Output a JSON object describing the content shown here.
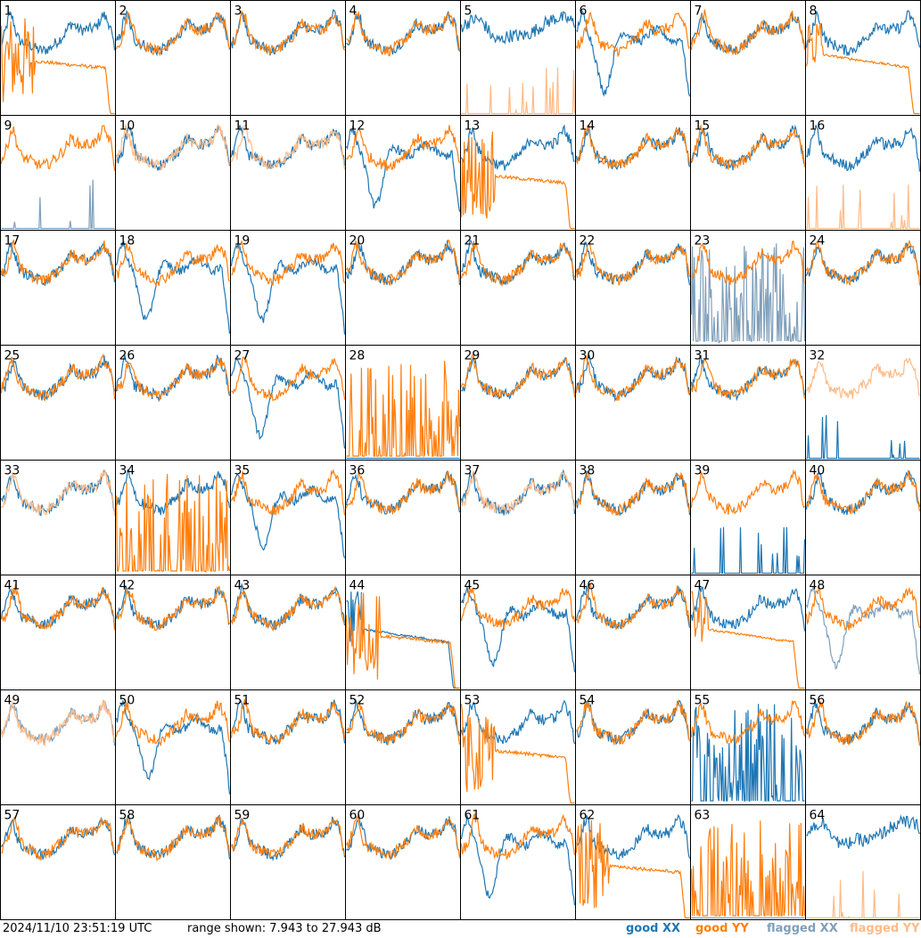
{
  "colors": {
    "good_xx": "#1f77b4",
    "good_yy": "#ff7f0e",
    "flagged_xx": "#7f9fba",
    "flagged_yy": "#ffbb88",
    "border": "#000000",
    "label": "#000000"
  },
  "footer": {
    "timestamp": "2024/11/10 23:51:19 UTC",
    "range": "range shown: 7.943 to 27.943 dB"
  },
  "legend": {
    "good_xx": "good XX",
    "good_yy": "good YY",
    "flagged_xx": "flagged XX",
    "flagged_yy": "flagged YY"
  },
  "chart_data": {
    "type": "line",
    "layout": "8x8 small multiples",
    "ylim_db": [
      7.943,
      27.943
    ],
    "panels": [
      {
        "label": "1",
        "xx": "good",
        "yy": "good",
        "xx_shape": "normal",
        "yy_shape": "spiky_low"
      },
      {
        "label": "2",
        "xx": "good",
        "yy": "good",
        "xx_shape": "normal",
        "yy_shape": "normal"
      },
      {
        "label": "3",
        "xx": "good",
        "yy": "good",
        "xx_shape": "normal",
        "yy_shape": "normal"
      },
      {
        "label": "4",
        "xx": "good",
        "yy": "good",
        "xx_shape": "normal",
        "yy_shape": "normal"
      },
      {
        "label": "5",
        "xx": "good",
        "yy": "flagged",
        "xx_shape": "high_noisy",
        "yy_shape": "sparse_spikes"
      },
      {
        "label": "6",
        "xx": "good",
        "yy": "good",
        "xx_shape": "dip",
        "yy_shape": "normal"
      },
      {
        "label": "7",
        "xx": "good",
        "yy": "good",
        "xx_shape": "normal",
        "yy_shape": "normal"
      },
      {
        "label": "8",
        "xx": "good",
        "yy": "good",
        "xx_shape": "normal",
        "yy_shape": "decay"
      },
      {
        "label": "9",
        "xx": "flagged",
        "yy": "good",
        "xx_shape": "sparse_spikes",
        "yy_shape": "normal"
      },
      {
        "label": "10",
        "xx": "good",
        "yy": "flagged",
        "xx_shape": "normal",
        "yy_shape": "normal"
      },
      {
        "label": "11",
        "xx": "good",
        "yy": "flagged",
        "xx_shape": "normal",
        "yy_shape": "normal"
      },
      {
        "label": "12",
        "xx": "good",
        "yy": "good",
        "xx_shape": "dip",
        "yy_shape": "normal"
      },
      {
        "label": "13",
        "xx": "good",
        "yy": "good",
        "xx_shape": "normal",
        "yy_shape": "spiky_low"
      },
      {
        "label": "14",
        "xx": "good",
        "yy": "good",
        "xx_shape": "normal",
        "yy_shape": "normal"
      },
      {
        "label": "15",
        "xx": "good",
        "yy": "good",
        "xx_shape": "normal",
        "yy_shape": "normal"
      },
      {
        "label": "16",
        "xx": "good",
        "yy": "flagged",
        "xx_shape": "normal",
        "yy_shape": "sparse_spikes"
      },
      {
        "label": "17",
        "xx": "good",
        "yy": "good",
        "xx_shape": "normal",
        "yy_shape": "normal"
      },
      {
        "label": "18",
        "xx": "good",
        "yy": "good",
        "xx_shape": "dip",
        "yy_shape": "normal"
      },
      {
        "label": "19",
        "xx": "good",
        "yy": "good",
        "xx_shape": "dip",
        "yy_shape": "normal"
      },
      {
        "label": "20",
        "xx": "good",
        "yy": "good",
        "xx_shape": "normal",
        "yy_shape": "normal"
      },
      {
        "label": "21",
        "xx": "good",
        "yy": "good",
        "xx_shape": "normal",
        "yy_shape": "normal"
      },
      {
        "label": "22",
        "xx": "good",
        "yy": "good",
        "xx_shape": "normal",
        "yy_shape": "normal"
      },
      {
        "label": "23",
        "xx": "flagged",
        "yy": "good",
        "xx_shape": "dense_spikes",
        "yy_shape": "normal"
      },
      {
        "label": "24",
        "xx": "good",
        "yy": "good",
        "xx_shape": "normal",
        "yy_shape": "normal"
      },
      {
        "label": "25",
        "xx": "good",
        "yy": "good",
        "xx_shape": "normal",
        "yy_shape": "normal"
      },
      {
        "label": "26",
        "xx": "good",
        "yy": "good",
        "xx_shape": "normal",
        "yy_shape": "normal"
      },
      {
        "label": "27",
        "xx": "good",
        "yy": "good",
        "xx_shape": "dip",
        "yy_shape": "normal"
      },
      {
        "label": "28",
        "xx": "good",
        "yy": "good",
        "xx_shape": "flat_bottom",
        "yy_shape": "dense_spikes"
      },
      {
        "label": "29",
        "xx": "good",
        "yy": "good",
        "xx_shape": "normal",
        "yy_shape": "normal"
      },
      {
        "label": "30",
        "xx": "good",
        "yy": "good",
        "xx_shape": "normal",
        "yy_shape": "normal"
      },
      {
        "label": "31",
        "xx": "good",
        "yy": "good",
        "xx_shape": "normal",
        "yy_shape": "normal"
      },
      {
        "label": "32",
        "xx": "good",
        "yy": "flagged",
        "xx_shape": "sparse_spikes",
        "yy_shape": "normal"
      },
      {
        "label": "33",
        "xx": "good",
        "yy": "flagged",
        "xx_shape": "normal",
        "yy_shape": "normal"
      },
      {
        "label": "34",
        "xx": "good",
        "yy": "good",
        "xx_shape": "normal",
        "yy_shape": "dense_spikes"
      },
      {
        "label": "35",
        "xx": "good",
        "yy": "good",
        "xx_shape": "dip",
        "yy_shape": "normal"
      },
      {
        "label": "36",
        "xx": "good",
        "yy": "good",
        "xx_shape": "normal",
        "yy_shape": "normal"
      },
      {
        "label": "37",
        "xx": "good",
        "yy": "flagged",
        "xx_shape": "normal",
        "yy_shape": "normal"
      },
      {
        "label": "38",
        "xx": "good",
        "yy": "good",
        "xx_shape": "normal",
        "yy_shape": "normal"
      },
      {
        "label": "39",
        "xx": "good",
        "yy": "good",
        "xx_shape": "sparse_spikes",
        "yy_shape": "normal"
      },
      {
        "label": "40",
        "xx": "good",
        "yy": "good",
        "xx_shape": "normal",
        "yy_shape": "normal"
      },
      {
        "label": "41",
        "xx": "good",
        "yy": "good",
        "xx_shape": "normal",
        "yy_shape": "normal"
      },
      {
        "label": "42",
        "xx": "good",
        "yy": "good",
        "xx_shape": "normal",
        "yy_shape": "normal"
      },
      {
        "label": "43",
        "xx": "good",
        "yy": "good",
        "xx_shape": "normal",
        "yy_shape": "normal"
      },
      {
        "label": "44",
        "xx": "good",
        "yy": "good",
        "xx_shape": "decay",
        "yy_shape": "spiky_low"
      },
      {
        "label": "45",
        "xx": "good",
        "yy": "good",
        "xx_shape": "dip",
        "yy_shape": "normal"
      },
      {
        "label": "46",
        "xx": "good",
        "yy": "good",
        "xx_shape": "normal",
        "yy_shape": "normal"
      },
      {
        "label": "47",
        "xx": "good",
        "yy": "good",
        "xx_shape": "normal",
        "yy_shape": "decay"
      },
      {
        "label": "48",
        "xx": "flagged",
        "yy": "good",
        "xx_shape": "dip",
        "yy_shape": "normal"
      },
      {
        "label": "49",
        "xx": "flagged",
        "yy": "flagged",
        "xx_shape": "normal",
        "yy_shape": "normal"
      },
      {
        "label": "50",
        "xx": "good",
        "yy": "good",
        "xx_shape": "dip",
        "yy_shape": "normal"
      },
      {
        "label": "51",
        "xx": "good",
        "yy": "good",
        "xx_shape": "normal",
        "yy_shape": "normal"
      },
      {
        "label": "52",
        "xx": "good",
        "yy": "good",
        "xx_shape": "normal",
        "yy_shape": "normal"
      },
      {
        "label": "53",
        "xx": "good",
        "yy": "good",
        "xx_shape": "normal",
        "yy_shape": "spiky_low"
      },
      {
        "label": "54",
        "xx": "good",
        "yy": "good",
        "xx_shape": "normal",
        "yy_shape": "normal"
      },
      {
        "label": "55",
        "xx": "good",
        "yy": "good",
        "xx_shape": "dense_spikes",
        "yy_shape": "normal"
      },
      {
        "label": "56",
        "xx": "good",
        "yy": "good",
        "xx_shape": "normal",
        "yy_shape": "normal"
      },
      {
        "label": "57",
        "xx": "good",
        "yy": "good",
        "xx_shape": "normal",
        "yy_shape": "normal"
      },
      {
        "label": "58",
        "xx": "good",
        "yy": "good",
        "xx_shape": "normal",
        "yy_shape": "normal"
      },
      {
        "label": "59",
        "xx": "good",
        "yy": "good",
        "xx_shape": "normal",
        "yy_shape": "normal"
      },
      {
        "label": "60",
        "xx": "good",
        "yy": "good",
        "xx_shape": "normal",
        "yy_shape": "normal"
      },
      {
        "label": "61",
        "xx": "good",
        "yy": "good",
        "xx_shape": "dip",
        "yy_shape": "normal"
      },
      {
        "label": "62",
        "xx": "good",
        "yy": "good",
        "xx_shape": "normal",
        "yy_shape": "spiky_low"
      },
      {
        "label": "63",
        "xx": "flagged",
        "yy": "good",
        "xx_shape": "flat_bottom",
        "yy_shape": "dense_spikes"
      },
      {
        "label": "64",
        "xx": "good",
        "yy": "flagged",
        "xx_shape": "high_noisy",
        "yy_shape": "sparse_spikes"
      }
    ]
  }
}
